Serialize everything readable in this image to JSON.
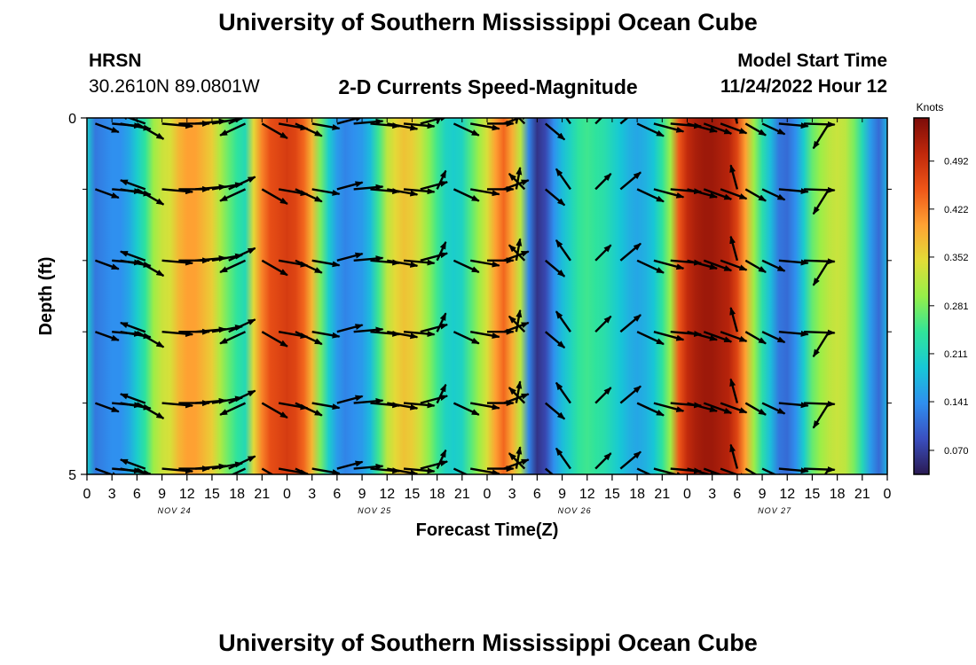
{
  "header": {
    "title": "University of Southern Mississippi Ocean Cube",
    "station": "HRSN",
    "coords": "30.2610N  89.0801W",
    "subtitle": "2-D Currents Speed-Magnitude",
    "model_start_label": "Model Start Time",
    "model_start_value": "11/24/2022 Hour 12"
  },
  "footer": {
    "title": "University of Southern Mississippi Ocean Cube"
  },
  "colors": {
    "c0": "#2a1a52",
    "c1": "#3a4fc0",
    "c2": "#2f8fef",
    "c3": "#17c8d6",
    "c4": "#31e59a",
    "c5": "#96f049",
    "c6": "#e2dc37",
    "c7": "#fea233",
    "c8": "#ef5618",
    "c9": "#c0280b",
    "c10": "#7c0c0a"
  },
  "chart_data": {
    "type": "heatmap",
    "title": "2-D Currents Speed-Magnitude",
    "xlabel": "Forecast Time(Z)",
    "ylabel": "Depth (ft)",
    "colorbar_label": "Knots",
    "colorbar_ticks": [
      "0.492",
      "0.422",
      "0.352",
      "0.281",
      "0.211",
      "0.141",
      "0.070"
    ],
    "colorbar_range": [
      0.035,
      0.555
    ],
    "x_range_hours": [
      0,
      96
    ],
    "x_tick_hours": [
      0,
      3,
      6,
      9,
      12,
      15,
      18,
      21,
      24,
      27,
      30,
      33,
      36,
      39,
      42,
      45,
      48,
      51,
      54,
      57,
      60,
      63,
      66,
      69,
      72,
      75,
      78,
      81,
      84,
      87,
      90,
      93,
      96
    ],
    "x_tick_labels": [
      "0",
      "3",
      "6",
      "9",
      "12",
      "15",
      "18",
      "21",
      "0",
      "3",
      "6",
      "9",
      "12",
      "15",
      "18",
      "21",
      "0",
      "3",
      "6",
      "9",
      "12",
      "15",
      "18",
      "21",
      "0",
      "3",
      "6",
      "9",
      "12",
      "15",
      "18",
      "21",
      "0"
    ],
    "day_labels": [
      {
        "hour": 10.5,
        "text": "NOV 24"
      },
      {
        "hour": 34.5,
        "text": "NOV 25"
      },
      {
        "hour": 58.5,
        "text": "NOV 26"
      },
      {
        "hour": 82.5,
        "text": "NOV 27"
      }
    ],
    "y_range_ft": [
      0,
      5
    ],
    "y_tick_labels": [
      {
        "depth": 0,
        "text": "0"
      },
      {
        "depth": 5,
        "text": "5"
      }
    ],
    "y_minor_depths": [
      1,
      2,
      3,
      4
    ],
    "speed_profile": {
      "hours": [
        0,
        1,
        2,
        3,
        4,
        5,
        6,
        7,
        8,
        9,
        10,
        11,
        12,
        13,
        14,
        15,
        16,
        17,
        18,
        19,
        20,
        21,
        22,
        23,
        24,
        25,
        26,
        27,
        28,
        29,
        30,
        31,
        32,
        33,
        34,
        35,
        36,
        37,
        38,
        39,
        40,
        41,
        42,
        43,
        44,
        45,
        46,
        47,
        48,
        49,
        50,
        51,
        52,
        53,
        54,
        55,
        56,
        57,
        58,
        59,
        60,
        61,
        62,
        63,
        64,
        65,
        66,
        67,
        68,
        69,
        70,
        71,
        72,
        73,
        74,
        75,
        76,
        77,
        78,
        79,
        80,
        81,
        82,
        83,
        84,
        85,
        86,
        87,
        88,
        89,
        90,
        91,
        92,
        93,
        94,
        95,
        96
      ],
      "speeds": [
        0.2,
        0.12,
        0.13,
        0.14,
        0.14,
        0.16,
        0.2,
        0.24,
        0.3,
        0.33,
        0.34,
        0.38,
        0.4,
        0.4,
        0.38,
        0.36,
        0.31,
        0.27,
        0.24,
        0.22,
        0.35,
        0.42,
        0.46,
        0.47,
        0.48,
        0.47,
        0.44,
        0.38,
        0.28,
        0.2,
        0.15,
        0.13,
        0.14,
        0.15,
        0.18,
        0.25,
        0.32,
        0.35,
        0.37,
        0.36,
        0.33,
        0.29,
        0.25,
        0.21,
        0.2,
        0.21,
        0.26,
        0.3,
        0.34,
        0.4,
        0.44,
        0.39,
        0.32,
        0.13,
        0.06,
        0.08,
        0.14,
        0.18,
        0.21,
        0.24,
        0.25,
        0.24,
        0.23,
        0.21,
        0.19,
        0.17,
        0.16,
        0.17,
        0.19,
        0.24,
        0.3,
        0.45,
        0.5,
        0.52,
        0.53,
        0.53,
        0.52,
        0.51,
        0.47,
        0.4,
        0.3,
        0.23,
        0.18,
        0.12,
        0.11,
        0.14,
        0.2,
        0.27,
        0.3,
        0.32,
        0.33,
        0.32,
        0.28,
        0.22,
        0.15,
        0.11,
        0.17
      ]
    },
    "vector_depths": [
      0.08,
      1.0,
      2.0,
      3.0,
      4.0,
      4.92
    ],
    "vectors": [
      {
        "hour": 1,
        "dir": 110,
        "len": 0.85
      },
      {
        "hour": 3,
        "dir": 95,
        "len": 1.0
      },
      {
        "hour": 4,
        "dir": 100,
        "len": 1.05
      },
      {
        "hour": 6,
        "dir": 120,
        "len": 1.05
      },
      {
        "hour": 7,
        "dir": 290,
        "len": 0.9
      },
      {
        "hour": 9,
        "dir": 95,
        "len": 1.05
      },
      {
        "hour": 11,
        "dir": 90,
        "len": 1.05
      },
      {
        "hour": 13,
        "dir": 85,
        "len": 1.05
      },
      {
        "hour": 15,
        "dir": 80,
        "len": 1.05
      },
      {
        "hour": 17,
        "dir": 65,
        "len": 1.0
      },
      {
        "hour": 19,
        "dir": 245,
        "len": 0.95
      },
      {
        "hour": 21,
        "dir": 120,
        "len": 1.0
      },
      {
        "hour": 23,
        "dir": 100,
        "len": 1.0
      },
      {
        "hour": 25,
        "dir": 115,
        "len": 1.0
      },
      {
        "hour": 27,
        "dir": 100,
        "len": 0.95
      },
      {
        "hour": 30,
        "dir": 75,
        "len": 0.9
      },
      {
        "hour": 32,
        "dir": 85,
        "len": 1.0
      },
      {
        "hour": 34,
        "dir": 95,
        "len": 1.0
      },
      {
        "hour": 36,
        "dir": 100,
        "len": 1.05
      },
      {
        "hour": 38,
        "dir": 95,
        "len": 1.05
      },
      {
        "hour": 40,
        "dir": 75,
        "len": 0.95
      },
      {
        "hour": 42,
        "dir": 25,
        "len": 0.7
      },
      {
        "hour": 44,
        "dir": 115,
        "len": 0.95
      },
      {
        "hour": 46,
        "dir": 100,
        "len": 1.0
      },
      {
        "hour": 48,
        "dir": 90,
        "len": 0.9
      },
      {
        "hour": 50,
        "dir": 70,
        "len": 0.9
      },
      {
        "hour": 51.5,
        "dir": 10,
        "len": 0.75
      },
      {
        "hour": 52.5,
        "dir": 315,
        "len": 0.75
      },
      {
        "hour": 55,
        "dir": 130,
        "len": 0.85
      },
      {
        "hour": 58,
        "dir": 325,
        "len": 0.85
      },
      {
        "hour": 61,
        "dir": 45,
        "len": 0.75
      },
      {
        "hour": 64,
        "dir": 50,
        "len": 0.9
      },
      {
        "hour": 66,
        "dir": 115,
        "len": 1.0
      },
      {
        "hour": 68,
        "dir": 105,
        "len": 1.05
      },
      {
        "hour": 70,
        "dir": 95,
        "len": 1.05
      },
      {
        "hour": 72,
        "dir": 105,
        "len": 1.05
      },
      {
        "hour": 74,
        "dir": 110,
        "len": 1.0
      },
      {
        "hour": 76,
        "dir": 110,
        "len": 0.95
      },
      {
        "hour": 78,
        "dir": 345,
        "len": 0.85
      },
      {
        "hour": 79,
        "dir": 120,
        "len": 0.8
      },
      {
        "hour": 81,
        "dir": 115,
        "len": 0.85
      },
      {
        "hour": 83,
        "dir": 95,
        "len": 1.0
      },
      {
        "hour": 86,
        "dir": 92,
        "len": 1.05
      },
      {
        "hour": 89,
        "dir": 212,
        "len": 1.0
      }
    ]
  }
}
